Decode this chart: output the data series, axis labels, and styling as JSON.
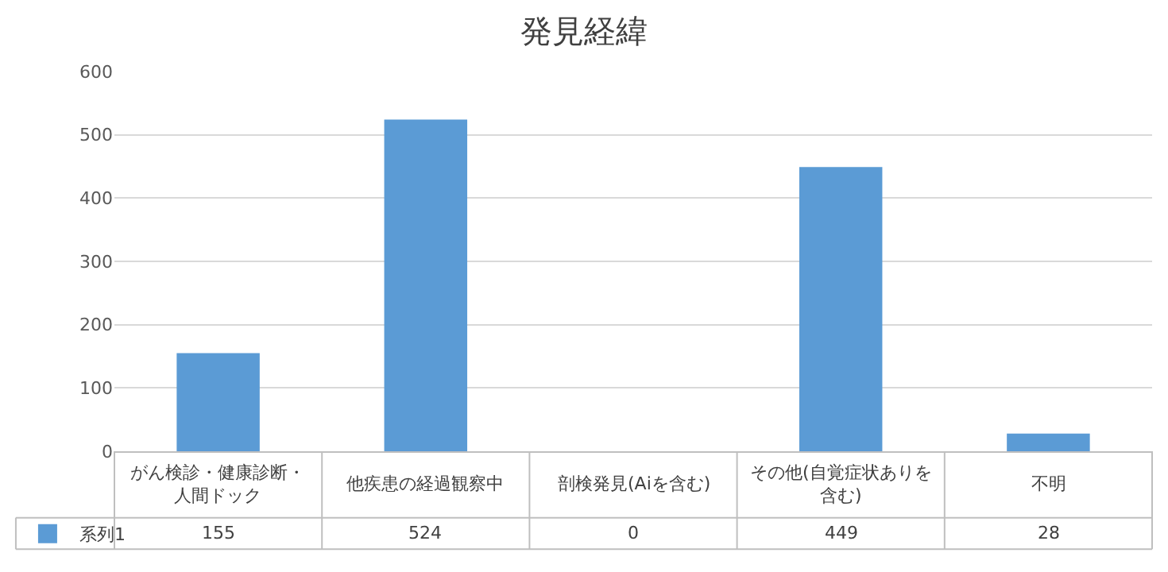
{
  "chart_data": {
    "type": "bar",
    "title": "発見経緯",
    "categories": [
      "がん検診・健康診断・人間ドック",
      "他疾患の経過観察中",
      "剖検発見(Aiを含む)",
      "その他(自覚症状ありを含む)",
      "不明"
    ],
    "series": [
      {
        "name": "系列1",
        "color": "#5b9bd5",
        "values": [
          155,
          524,
          0,
          449,
          28
        ]
      }
    ],
    "ylim": [
      0,
      600
    ],
    "yticks": [
      0,
      100,
      200,
      300,
      400,
      500,
      600
    ],
    "grid": "y",
    "data_labels": true,
    "legend": "bottom left"
  }
}
